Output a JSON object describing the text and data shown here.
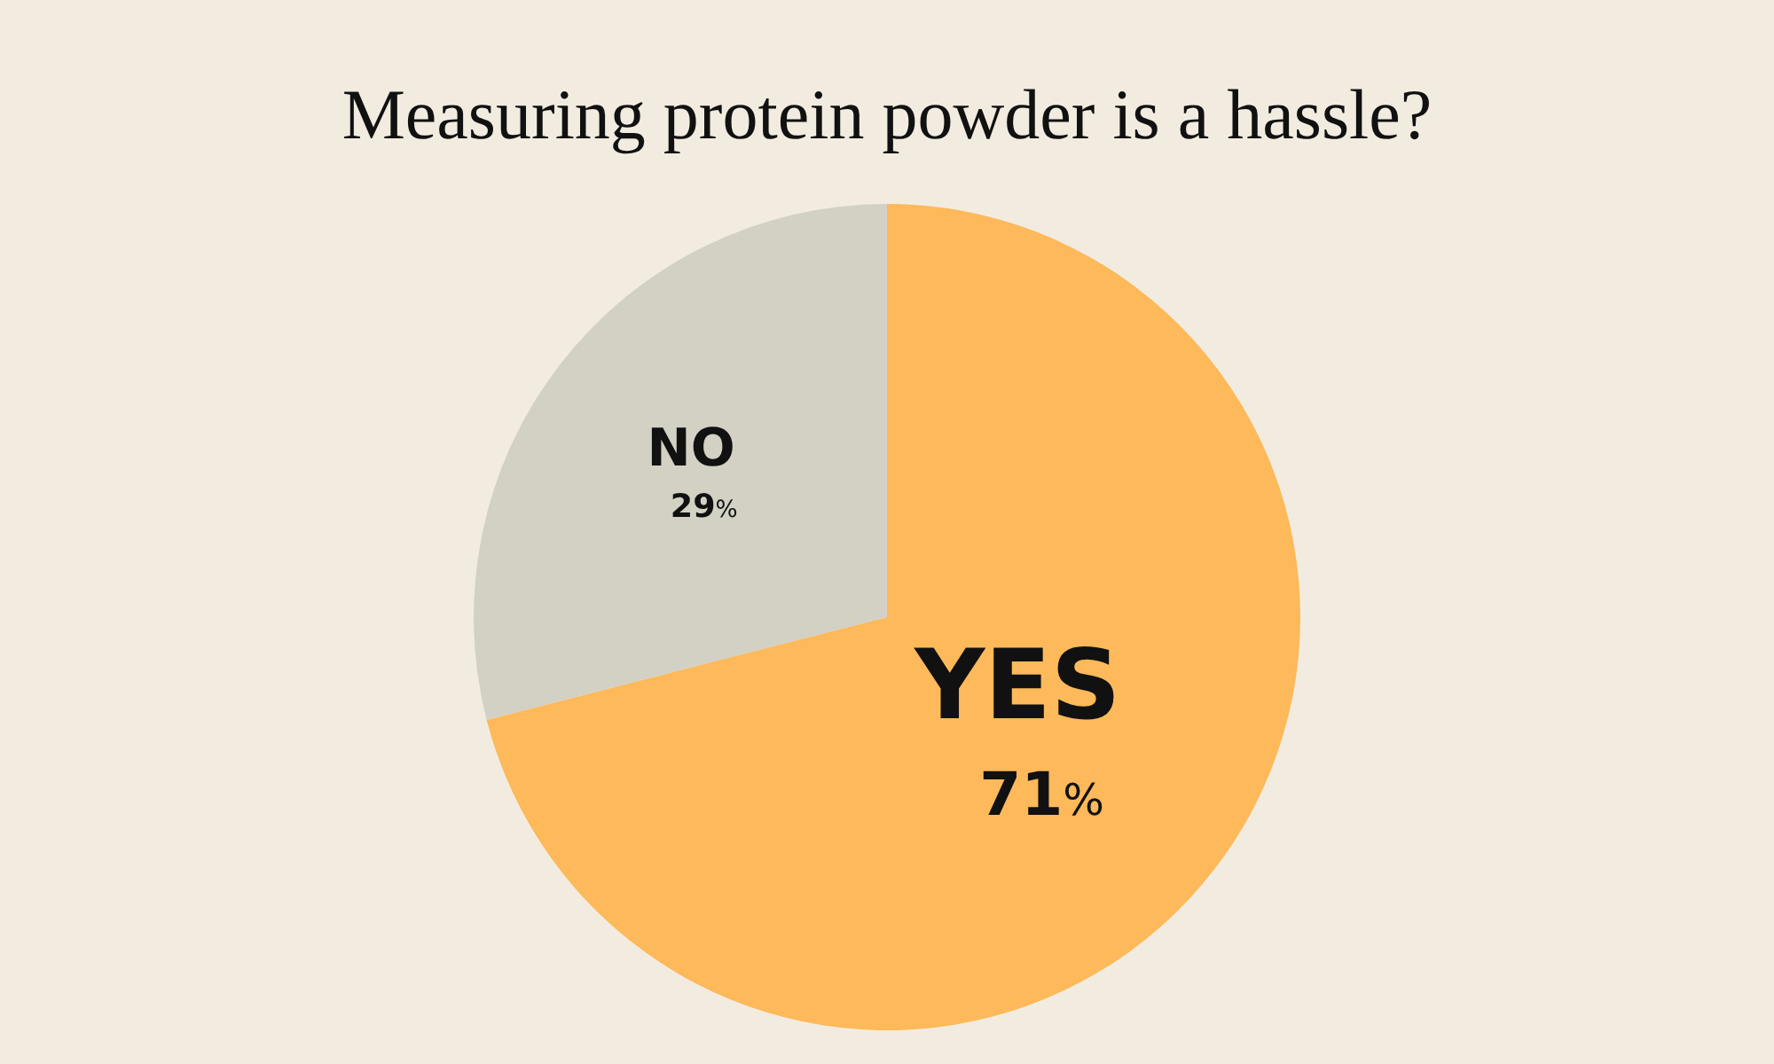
{
  "chart_data": {
    "type": "pie",
    "title": "Measuring protein powder is a hassle?",
    "categories": [
      "YES",
      "NO"
    ],
    "values": [
      71,
      29
    ],
    "value_labels": [
      "71%",
      "29%"
    ],
    "colors": [
      "#fdb95a",
      "#d3d1c4"
    ]
  }
}
